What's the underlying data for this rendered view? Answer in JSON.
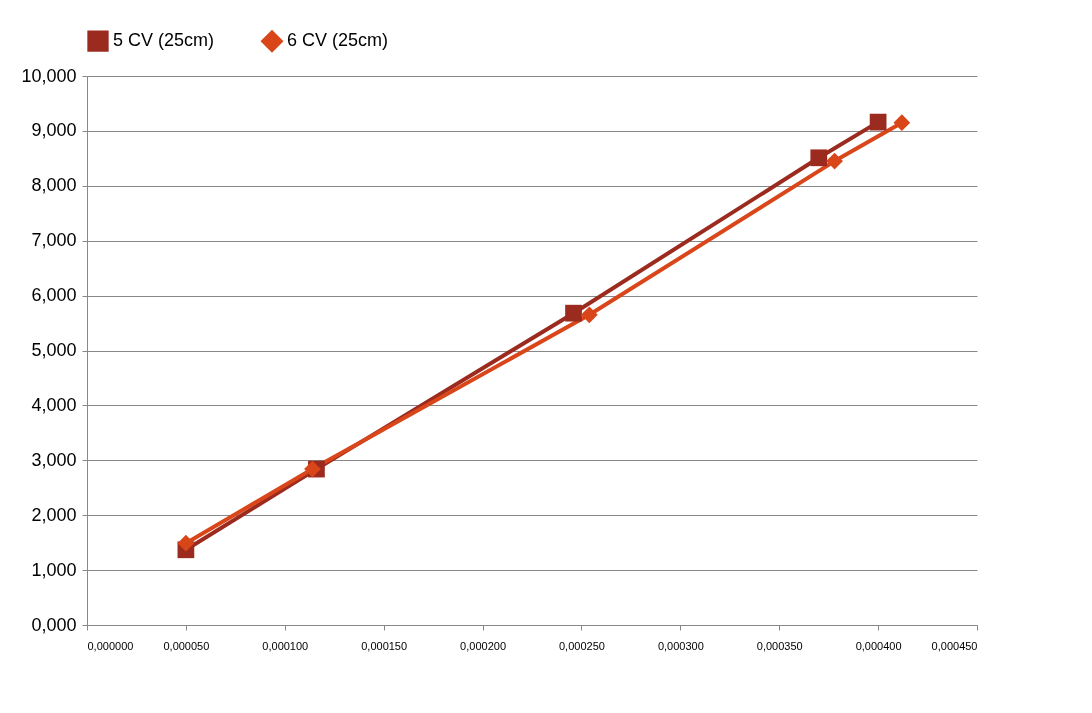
{
  "chart_data": {
    "type": "line",
    "marker": "square",
    "legend": "top",
    "grid": "y",
    "xlim": [
      0,
      0.00045
    ],
    "ylim": [
      0,
      10
    ],
    "xticks": [
      {
        "value": 0,
        "label": "0,000000"
      },
      {
        "value": 5e-05,
        "label": "0,000050"
      },
      {
        "value": 0.0001,
        "label": "0,000100"
      },
      {
        "value": 0.00015,
        "label": "0,000150"
      },
      {
        "value": 0.0002,
        "label": "0,000200"
      },
      {
        "value": 0.00025,
        "label": "0,000250"
      },
      {
        "value": 0.0003,
        "label": "0,000300"
      },
      {
        "value": 0.00035,
        "label": "0,000350"
      },
      {
        "value": 0.0004,
        "label": "0,000400"
      },
      {
        "value": 0.00045,
        "label": "0,000450"
      }
    ],
    "yticks": [
      {
        "value": 0,
        "label": "0,000"
      },
      {
        "value": 1,
        "label": "1,000"
      },
      {
        "value": 2,
        "label": "2,000"
      },
      {
        "value": 3,
        "label": "3,000"
      },
      {
        "value": 4,
        "label": "4,000"
      },
      {
        "value": 5,
        "label": "5,000"
      },
      {
        "value": 6,
        "label": "6,000"
      },
      {
        "value": 7,
        "label": "7,000"
      },
      {
        "value": 8,
        "label": "8,000"
      },
      {
        "value": 9,
        "label": "9,000"
      },
      {
        "value": 10,
        "label": "10,000"
      }
    ],
    "series": [
      {
        "name": "5 CV (25cm)",
        "color": "#9c2b1f",
        "marker": "square",
        "x": [
          5e-05,
          0.000116,
          0.000246,
          0.00037,
          0.0004
        ],
        "values": [
          1.37,
          2.84,
          5.68,
          8.51,
          9.16
        ]
      },
      {
        "name": "6 CV (25cm)",
        "color": "#d9461a",
        "marker": "diamond",
        "x": [
          5e-05,
          0.000114,
          0.000254,
          0.000378,
          0.000412
        ],
        "values": [
          1.49,
          2.84,
          5.65,
          8.45,
          9.15
        ]
      }
    ]
  }
}
